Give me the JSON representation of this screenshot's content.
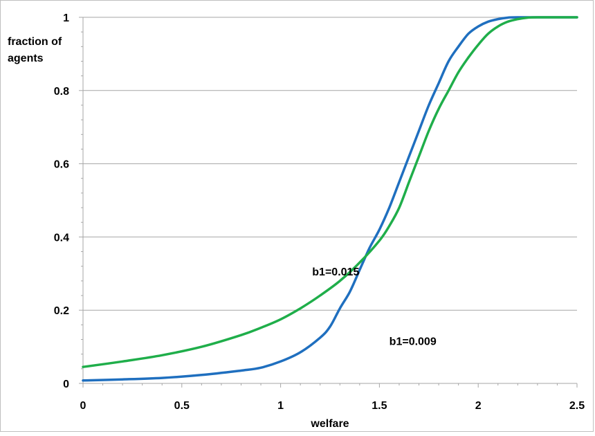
{
  "chart_data": {
    "type": "line",
    "title": "",
    "xlabel": "welfare",
    "ylabel": [
      "fraction of",
      "agents"
    ],
    "xlim": [
      0,
      2.5
    ],
    "ylim": [
      0,
      1
    ],
    "x_ticks": [
      0,
      0.5,
      1,
      1.5,
      2,
      2.5
    ],
    "x_tick_labels": [
      "0",
      "0.5",
      "1",
      "1.5",
      "2",
      "2.5"
    ],
    "y_ticks": [
      0,
      0.2,
      0.4,
      0.6,
      0.8,
      1
    ],
    "y_tick_labels": [
      "0",
      "0.2",
      "0.4",
      "0.6",
      "0.8",
      "1"
    ],
    "grid": "horizontal",
    "legend": "none",
    "series": [
      {
        "color": "#1f6fbf",
        "points": [
          [
            0,
            0.008
          ],
          [
            0.2,
            0.011
          ],
          [
            0.4,
            0.015
          ],
          [
            0.6,
            0.023
          ],
          [
            0.8,
            0.035
          ],
          [
            0.9,
            0.043
          ],
          [
            1.0,
            0.06
          ],
          [
            1.1,
            0.085
          ],
          [
            1.2,
            0.125
          ],
          [
            1.25,
            0.155
          ],
          [
            1.3,
            0.205
          ],
          [
            1.35,
            0.25
          ],
          [
            1.4,
            0.31
          ],
          [
            1.45,
            0.37
          ],
          [
            1.5,
            0.42
          ],
          [
            1.55,
            0.48
          ],
          [
            1.6,
            0.55
          ],
          [
            1.65,
            0.62
          ],
          [
            1.7,
            0.69
          ],
          [
            1.75,
            0.76
          ],
          [
            1.8,
            0.82
          ],
          [
            1.85,
            0.88
          ],
          [
            1.9,
            0.92
          ],
          [
            1.95,
            0.955
          ],
          [
            2.0,
            0.975
          ],
          [
            2.05,
            0.988
          ],
          [
            2.1,
            0.995
          ],
          [
            2.15,
            0.999
          ],
          [
            2.2,
            1.0
          ],
          [
            2.5,
            1.0
          ]
        ]
      },
      {
        "color": "#1fae4a",
        "points": [
          [
            0,
            0.045
          ],
          [
            0.2,
            0.06
          ],
          [
            0.4,
            0.077
          ],
          [
            0.6,
            0.1
          ],
          [
            0.8,
            0.132
          ],
          [
            0.9,
            0.152
          ],
          [
            1.0,
            0.175
          ],
          [
            1.1,
            0.205
          ],
          [
            1.2,
            0.24
          ],
          [
            1.3,
            0.28
          ],
          [
            1.4,
            0.33
          ],
          [
            1.5,
            0.39
          ],
          [
            1.55,
            0.43
          ],
          [
            1.6,
            0.48
          ],
          [
            1.65,
            0.55
          ],
          [
            1.7,
            0.62
          ],
          [
            1.75,
            0.69
          ],
          [
            1.8,
            0.75
          ],
          [
            1.85,
            0.8
          ],
          [
            1.9,
            0.85
          ],
          [
            1.95,
            0.89
          ],
          [
            2.0,
            0.925
          ],
          [
            2.05,
            0.955
          ],
          [
            2.1,
            0.975
          ],
          [
            2.15,
            0.988
          ],
          [
            2.2,
            0.995
          ],
          [
            2.25,
            0.999
          ],
          [
            2.3,
            1.0
          ],
          [
            2.5,
            1.0
          ]
        ]
      }
    ],
    "annotations": [
      {
        "text": "b1=0.015",
        "x": 1.16,
        "y": 0.295
      },
      {
        "text": "b1=0.009",
        "x": 1.55,
        "y": 0.105
      }
    ]
  }
}
